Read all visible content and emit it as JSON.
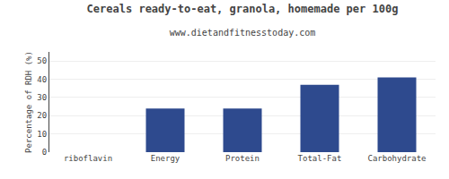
{
  "chart_data": {
    "type": "bar",
    "title": "Cereals ready-to-eat, granola, homemade per 100g",
    "subtitle": "www.dietandfitnesstoday.com",
    "categories": [
      "riboflavin",
      "Energy",
      "Protein",
      "Total-Fat",
      "Carbohydrate"
    ],
    "values": [
      0,
      24,
      24,
      37,
      41
    ],
    "color": "#2e4a8e",
    "ylabel": "Percentage of RDH (%)",
    "ylim": [
      0,
      55
    ],
    "yticks": [
      0,
      10,
      20,
      30,
      40,
      50
    ],
    "grid": true
  }
}
